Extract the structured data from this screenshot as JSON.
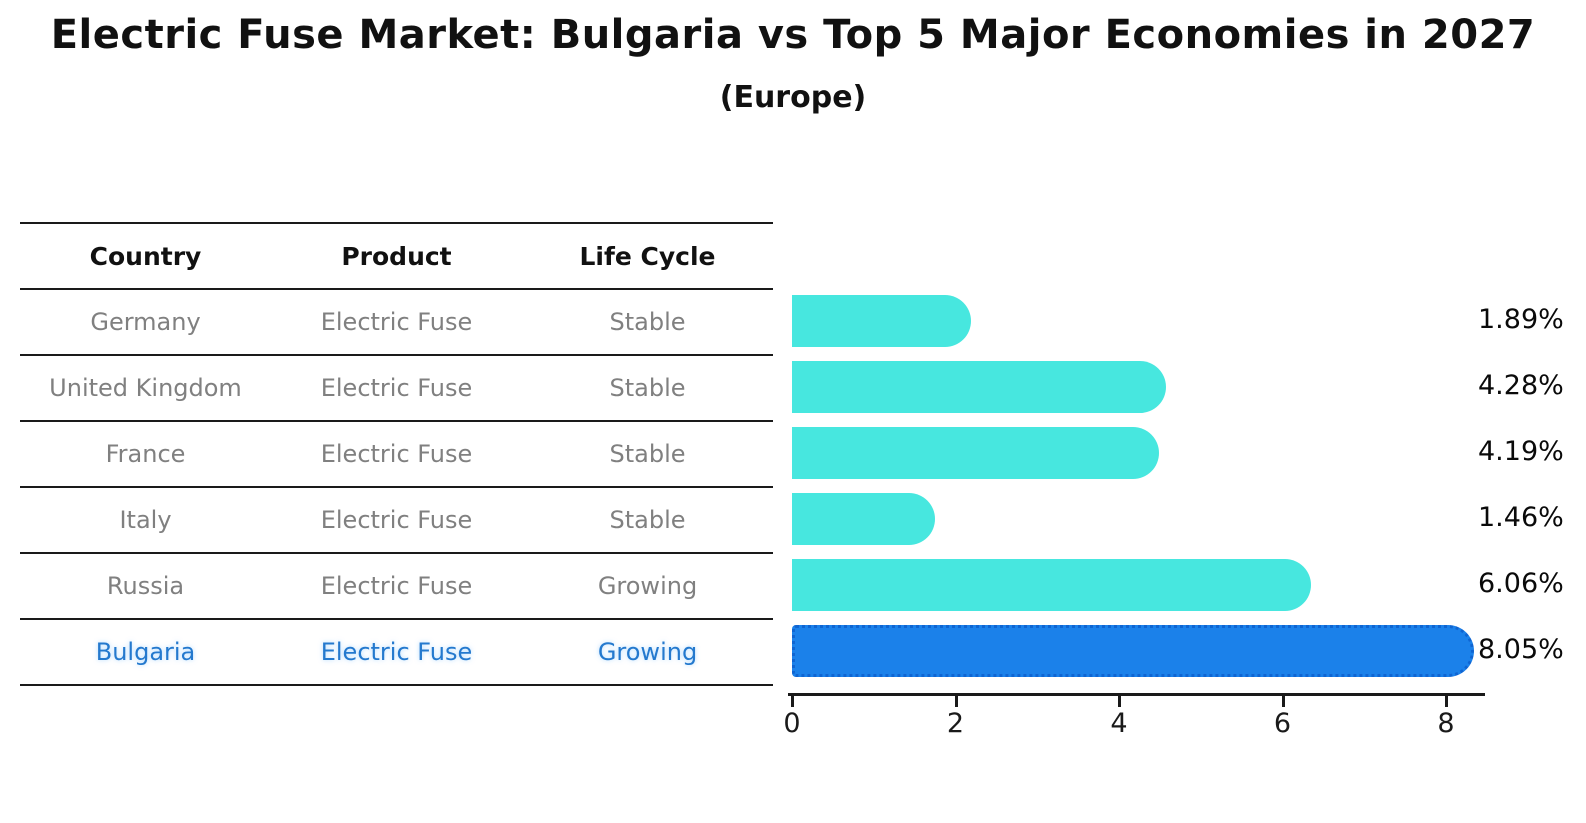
{
  "title": "Electric Fuse Market: Bulgaria vs Top 5 Major Economies in 2027",
  "subtitle": "(Europe)",
  "table": {
    "headers": [
      "Country",
      "Product",
      "Life Cycle"
    ]
  },
  "chart_data": {
    "type": "bar",
    "orientation": "horizontal",
    "title": "Electric Fuse Market: Bulgaria vs Top 5 Major Economies in 2027",
    "subtitle": "(Europe)",
    "xlabel": "",
    "ylabel": "",
    "xlim": [
      0,
      8.5
    ],
    "x_ticks": [
      "0",
      "2",
      "4",
      "6",
      "8"
    ],
    "grid": false,
    "legend": false,
    "bar_color": "#47e7df",
    "highlight_bar_color": "#1b81ea",
    "highlight_bar_border_color": "#0f65d2",
    "row_text_color": "#808080",
    "highlight_text_color": "#2479ce",
    "rows": [
      {
        "country": "Germany",
        "product": "Electric Fuse",
        "life_cycle": "Stable",
        "value": 1.89,
        "label": "1.89%",
        "highlight": false
      },
      {
        "country": "United Kingdom",
        "product": "Electric Fuse",
        "life_cycle": "Stable",
        "value": 4.28,
        "label": "4.28%",
        "highlight": false
      },
      {
        "country": "France",
        "product": "Electric Fuse",
        "life_cycle": "Stable",
        "value": 4.19,
        "label": "4.19%",
        "highlight": false
      },
      {
        "country": "Italy",
        "product": "Electric Fuse",
        "life_cycle": "Stable",
        "value": 1.46,
        "label": "1.46%",
        "highlight": false
      },
      {
        "country": "Russia",
        "product": "Electric Fuse",
        "life_cycle": "Growing",
        "value": 6.06,
        "label": "6.06%",
        "highlight": false
      },
      {
        "country": "Bulgaria",
        "product": "Electric Fuse",
        "life_cycle": "Growing",
        "value": 8.05,
        "label": "8.05%",
        "highlight": true
      }
    ]
  }
}
